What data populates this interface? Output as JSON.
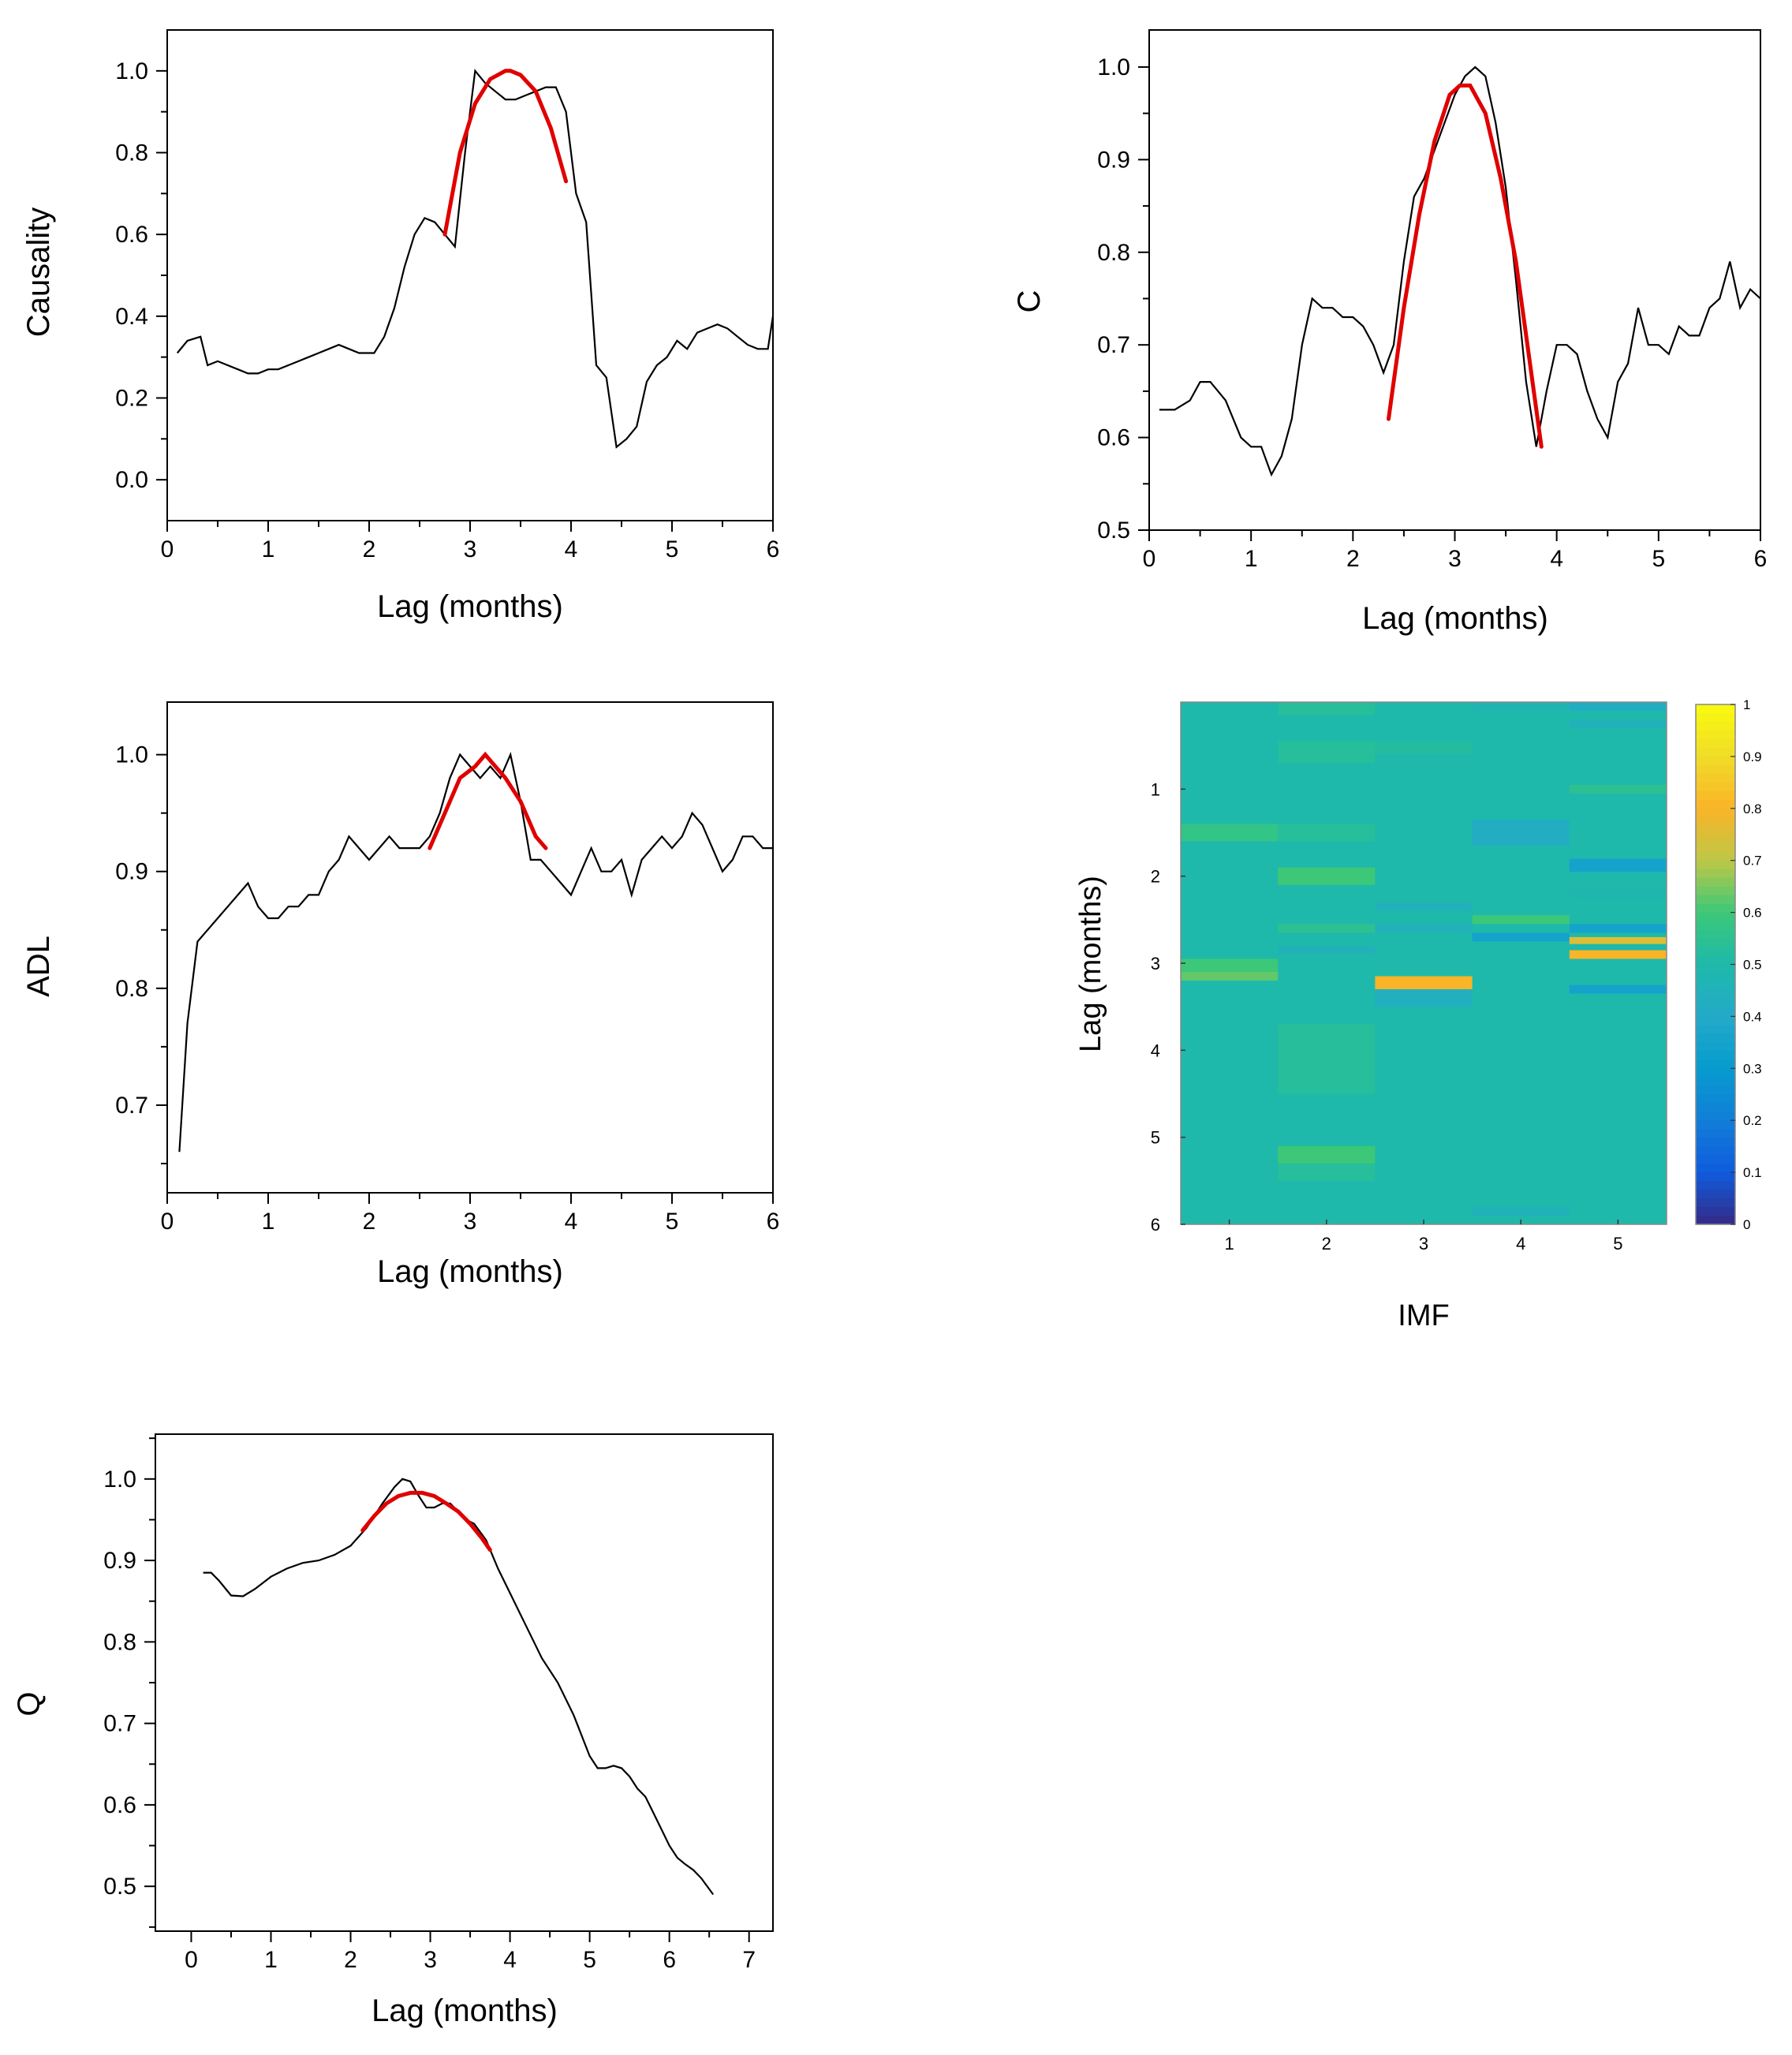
{
  "chart_data": [
    {
      "type": "line",
      "xlabel": "Lag (months)",
      "ylabel": "Causality",
      "xlim": [
        0,
        6
      ],
      "ylim": [
        -0.1,
        1.1
      ],
      "xticks": [
        "0",
        "1",
        "2",
        "3",
        "4",
        "5",
        "6"
      ],
      "yticks": [
        "0.0",
        "0.2",
        "0.4",
        "0.6",
        "0.8",
        "1.0"
      ],
      "series": [
        {
          "color": "#000000",
          "x": [
            0.1,
            0.2,
            0.33,
            0.4,
            0.5,
            0.7,
            0.8,
            0.9,
            1.0,
            1.1,
            1.2,
            1.3,
            1.4,
            1.5,
            1.6,
            1.7,
            1.8,
            1.9,
            2.0,
            2.05,
            2.15,
            2.25,
            2.35,
            2.45,
            2.55,
            2.65,
            2.75,
            2.85,
            2.95,
            3.05,
            3.15,
            3.25,
            3.35,
            3.45,
            3.55,
            3.65,
            3.75,
            3.85,
            3.95,
            4.05,
            4.15,
            4.25,
            4.35,
            4.45,
            4.55,
            4.65,
            4.75,
            4.85,
            4.95,
            5.05,
            5.15,
            5.25,
            5.35,
            5.45,
            5.55,
            5.65,
            5.75,
            5.85,
            5.95,
            6.0
          ],
          "y": [
            0.31,
            0.34,
            0.35,
            0.28,
            0.29,
            0.27,
            0.26,
            0.26,
            0.27,
            0.27,
            0.28,
            0.29,
            0.3,
            0.31,
            0.32,
            0.33,
            0.32,
            0.31,
            0.31,
            0.31,
            0.35,
            0.42,
            0.52,
            0.6,
            0.64,
            0.63,
            0.6,
            0.57,
            0.8,
            1.0,
            0.97,
            0.95,
            0.93,
            0.93,
            0.94,
            0.95,
            0.96,
            0.96,
            0.9,
            0.7,
            0.63,
            0.28,
            0.25,
            0.08,
            0.1,
            0.13,
            0.24,
            0.28,
            0.3,
            0.34,
            0.32,
            0.36,
            0.37,
            0.38,
            0.37,
            0.35,
            0.33,
            0.32,
            0.32,
            0.4
          ]
        },
        {
          "color": "#e00000",
          "x": [
            2.75,
            2.9,
            3.05,
            3.2,
            3.35,
            3.4,
            3.5,
            3.65,
            3.8,
            3.95
          ],
          "y": [
            0.6,
            0.8,
            0.92,
            0.98,
            1.0,
            1.0,
            0.99,
            0.95,
            0.86,
            0.73
          ]
        }
      ]
    },
    {
      "type": "line",
      "xlabel": "Lag (months)",
      "ylabel": "C",
      "xlim": [
        0,
        6
      ],
      "ylim": [
        0.5,
        1.04
      ],
      "xticks": [
        "0",
        "1",
        "2",
        "3",
        "4",
        "5",
        "6"
      ],
      "yticks": [
        "0.5",
        "0.6",
        "0.7",
        "0.8",
        "0.9",
        "1.0"
      ],
      "series": [
        {
          "color": "#000000",
          "x": [
            0.1,
            0.25,
            0.4,
            0.5,
            0.6,
            0.75,
            0.9,
            1.0,
            1.1,
            1.2,
            1.3,
            1.4,
            1.5,
            1.6,
            1.7,
            1.8,
            1.9,
            2.0,
            2.1,
            2.2,
            2.3,
            2.4,
            2.5,
            2.6,
            2.7,
            2.8,
            2.9,
            3.0,
            3.1,
            3.2,
            3.3,
            3.4,
            3.5,
            3.6,
            3.7,
            3.8,
            3.9,
            4.0,
            4.1,
            4.2,
            4.3,
            4.4,
            4.5,
            4.6,
            4.7,
            4.8,
            4.9,
            5.0,
            5.1,
            5.2,
            5.3,
            5.4,
            5.5,
            5.6,
            5.7,
            5.8,
            5.9,
            6.0
          ],
          "y": [
            0.63,
            0.63,
            0.64,
            0.66,
            0.66,
            0.64,
            0.6,
            0.59,
            0.59,
            0.56,
            0.58,
            0.62,
            0.7,
            0.75,
            0.74,
            0.74,
            0.73,
            0.73,
            0.72,
            0.7,
            0.67,
            0.7,
            0.79,
            0.86,
            0.88,
            0.91,
            0.94,
            0.97,
            0.99,
            1.0,
            0.99,
            0.94,
            0.87,
            0.77,
            0.66,
            0.59,
            0.65,
            0.7,
            0.7,
            0.69,
            0.65,
            0.62,
            0.6,
            0.66,
            0.68,
            0.74,
            0.7,
            0.7,
            0.69,
            0.72,
            0.71,
            0.71,
            0.74,
            0.75,
            0.79,
            0.74,
            0.76,
            0.75
          ]
        },
        {
          "color": "#e00000",
          "x": [
            2.35,
            2.5,
            2.65,
            2.8,
            2.95,
            3.05,
            3.15,
            3.3,
            3.45,
            3.6,
            3.75,
            3.85
          ],
          "y": [
            0.62,
            0.74,
            0.84,
            0.92,
            0.97,
            0.98,
            0.98,
            0.95,
            0.88,
            0.79,
            0.67,
            0.59
          ]
        }
      ]
    },
    {
      "type": "line",
      "xlabel": "Lag (months)",
      "ylabel": "ADL",
      "xlim": [
        0,
        6
      ],
      "ylim": [
        0.625,
        1.045
      ],
      "xticks": [
        "0",
        "1",
        "2",
        "3",
        "4",
        "5",
        "6"
      ],
      "yticks": [
        "0.7",
        "0.8",
        "0.9",
        "1.0"
      ],
      "series": [
        {
          "color": "#000000",
          "x": [
            0.12,
            0.2,
            0.3,
            0.4,
            0.5,
            0.6,
            0.7,
            0.8,
            0.9,
            1.0,
            1.1,
            1.2,
            1.3,
            1.4,
            1.5,
            1.6,
            1.7,
            1.8,
            1.9,
            2.0,
            2.1,
            2.2,
            2.3,
            2.4,
            2.5,
            2.6,
            2.7,
            2.8,
            2.9,
            3.0,
            3.1,
            3.2,
            3.3,
            3.4,
            3.5,
            3.6,
            3.7,
            3.8,
            3.9,
            4.0,
            4.1,
            4.2,
            4.3,
            4.4,
            4.5,
            4.6,
            4.7,
            4.8,
            4.9,
            5.0,
            5.1,
            5.2,
            5.3,
            5.4,
            5.5,
            5.6,
            5.7,
            5.8,
            5.9,
            6.0
          ],
          "y": [
            0.66,
            0.77,
            0.84,
            0.85,
            0.86,
            0.87,
            0.88,
            0.89,
            0.87,
            0.86,
            0.86,
            0.87,
            0.87,
            0.88,
            0.88,
            0.9,
            0.91,
            0.93,
            0.92,
            0.91,
            0.92,
            0.93,
            0.92,
            0.92,
            0.92,
            0.93,
            0.95,
            0.98,
            1.0,
            0.99,
            0.98,
            0.99,
            0.98,
            1.0,
            0.96,
            0.91,
            0.91,
            0.9,
            0.89,
            0.88,
            0.9,
            0.92,
            0.9,
            0.9,
            0.91,
            0.88,
            0.91,
            0.92,
            0.93,
            0.92,
            0.93,
            0.95,
            0.94,
            0.92,
            0.9,
            0.91,
            0.93,
            0.93,
            0.92,
            0.92
          ]
        },
        {
          "color": "#e00000",
          "x": [
            2.6,
            2.75,
            2.9,
            3.05,
            3.15,
            3.25,
            3.35,
            3.5,
            3.65,
            3.75
          ],
          "y": [
            0.92,
            0.95,
            0.98,
            0.99,
            1.0,
            0.99,
            0.98,
            0.96,
            0.93,
            0.92
          ]
        }
      ]
    },
    {
      "type": "heatmap",
      "xlabel": "IMF",
      "ylabel": "Lag (months)",
      "xticks": [
        "1",
        "2",
        "3",
        "4",
        "5"
      ],
      "yticks": [
        "1",
        "2",
        "3",
        "4",
        "5",
        "6"
      ],
      "ylim": [
        0,
        6
      ],
      "colorbar_ticks": [
        "0",
        "0.1",
        "0.2",
        "0.3",
        "0.4",
        "0.5",
        "0.6",
        "0.7",
        "0.8",
        "0.9",
        "1"
      ],
      "colorbar_range": [
        0,
        1
      ],
      "background_value": 0.5,
      "cells": [
        {
          "imf": 1,
          "y0": 0.0,
          "y1": 1.4,
          "v": 0.5
        },
        {
          "imf": 1,
          "y0": 1.4,
          "y1": 1.6,
          "v": 0.57
        },
        {
          "imf": 1,
          "y0": 2.95,
          "y1": 3.1,
          "v": 0.6
        },
        {
          "imf": 1,
          "y0": 3.1,
          "y1": 3.2,
          "v": 0.63
        },
        {
          "imf": 2,
          "y0": 0.0,
          "y1": 0.15,
          "v": 0.53
        },
        {
          "imf": 2,
          "y0": 0.45,
          "y1": 0.7,
          "v": 0.53
        },
        {
          "imf": 2,
          "y0": 1.4,
          "y1": 1.6,
          "v": 0.53
        },
        {
          "imf": 2,
          "y0": 1.9,
          "y1": 2.1,
          "v": 0.6
        },
        {
          "imf": 2,
          "y0": 2.55,
          "y1": 2.65,
          "v": 0.55
        },
        {
          "imf": 2,
          "y0": 2.8,
          "y1": 2.9,
          "v": 0.45
        },
        {
          "imf": 2,
          "y0": 3.7,
          "y1": 4.5,
          "v": 0.53
        },
        {
          "imf": 2,
          "y0": 5.1,
          "y1": 5.3,
          "v": 0.6
        },
        {
          "imf": 2,
          "y0": 5.3,
          "y1": 5.5,
          "v": 0.53
        },
        {
          "imf": 3,
          "y0": 0.45,
          "y1": 0.6,
          "v": 0.52
        },
        {
          "imf": 3,
          "y0": 2.3,
          "y1": 2.4,
          "v": 0.45
        },
        {
          "imf": 3,
          "y0": 2.55,
          "y1": 2.65,
          "v": 0.45
        },
        {
          "imf": 3,
          "y0": 3.15,
          "y1": 3.3,
          "v": 0.8
        },
        {
          "imf": 3,
          "y0": 3.3,
          "y1": 3.5,
          "v": 0.43
        },
        {
          "imf": 4,
          "y0": 0.0,
          "y1": 0.1,
          "v": 0.47
        },
        {
          "imf": 4,
          "y0": 1.35,
          "y1": 1.65,
          "v": 0.42
        },
        {
          "imf": 4,
          "y0": 2.45,
          "y1": 2.55,
          "v": 0.6
        },
        {
          "imf": 4,
          "y0": 2.65,
          "y1": 2.75,
          "v": 0.35
        },
        {
          "imf": 4,
          "y0": 5.8,
          "y1": 5.9,
          "v": 0.45
        },
        {
          "imf": 5,
          "y0": 0.0,
          "y1": 0.1,
          "v": 0.42
        },
        {
          "imf": 5,
          "y0": 0.2,
          "y1": 0.3,
          "v": 0.45
        },
        {
          "imf": 5,
          "y0": 0.95,
          "y1": 1.05,
          "v": 0.55
        },
        {
          "imf": 5,
          "y0": 1.8,
          "y1": 1.95,
          "v": 0.35
        },
        {
          "imf": 5,
          "y0": 2.15,
          "y1": 2.25,
          "v": 0.48
        },
        {
          "imf": 5,
          "y0": 2.55,
          "y1": 2.65,
          "v": 0.35
        },
        {
          "imf": 5,
          "y0": 2.7,
          "y1": 2.78,
          "v": 0.75
        },
        {
          "imf": 5,
          "y0": 2.85,
          "y1": 2.95,
          "v": 0.8
        },
        {
          "imf": 5,
          "y0": 3.25,
          "y1": 3.35,
          "v": 0.35
        }
      ]
    },
    {
      "type": "line",
      "xlabel": "Lag (months)",
      "ylabel": "Q",
      "xlim": [
        -0.45,
        7.3
      ],
      "ylim": [
        0.445,
        1.055
      ],
      "xticks": [
        "0",
        "1",
        "2",
        "3",
        "4",
        "5",
        "6",
        "7"
      ],
      "yticks": [
        "0.5",
        "0.6",
        "0.7",
        "0.8",
        "0.9",
        "1.0"
      ],
      "series": [
        {
          "color": "#000000",
          "x": [
            0.15,
            0.25,
            0.35,
            0.5,
            0.65,
            0.8,
            1.0,
            1.2,
            1.4,
            1.6,
            1.8,
            2.0,
            2.2,
            2.4,
            2.55,
            2.65,
            2.75,
            2.85,
            2.95,
            3.05,
            3.15,
            3.25,
            3.35,
            3.45,
            3.55,
            3.7,
            3.85,
            4.0,
            4.2,
            4.4,
            4.6,
            4.8,
            5.0,
            5.1,
            5.2,
            5.3,
            5.4,
            5.5,
            5.6,
            5.7,
            5.8,
            5.9,
            6.0,
            6.1,
            6.2,
            6.3,
            6.4,
            6.55
          ],
          "y": [
            0.885,
            0.885,
            0.875,
            0.857,
            0.856,
            0.865,
            0.88,
            0.89,
            0.897,
            0.9,
            0.907,
            0.918,
            0.94,
            0.97,
            0.99,
            1.0,
            0.997,
            0.98,
            0.965,
            0.965,
            0.97,
            0.97,
            0.96,
            0.95,
            0.945,
            0.925,
            0.89,
            0.86,
            0.82,
            0.78,
            0.75,
            0.71,
            0.66,
            0.645,
            0.645,
            0.648,
            0.645,
            0.635,
            0.62,
            0.61,
            0.59,
            0.57,
            0.55,
            0.535,
            0.527,
            0.52,
            0.51,
            0.49
          ]
        },
        {
          "color": "#e00000",
          "x": [
            2.15,
            2.3,
            2.45,
            2.6,
            2.75,
            2.9,
            3.05,
            3.2,
            3.35,
            3.5,
            3.65,
            3.75
          ],
          "y": [
            0.937,
            0.955,
            0.97,
            0.979,
            0.983,
            0.983,
            0.979,
            0.97,
            0.96,
            0.945,
            0.927,
            0.913
          ]
        }
      ]
    }
  ]
}
